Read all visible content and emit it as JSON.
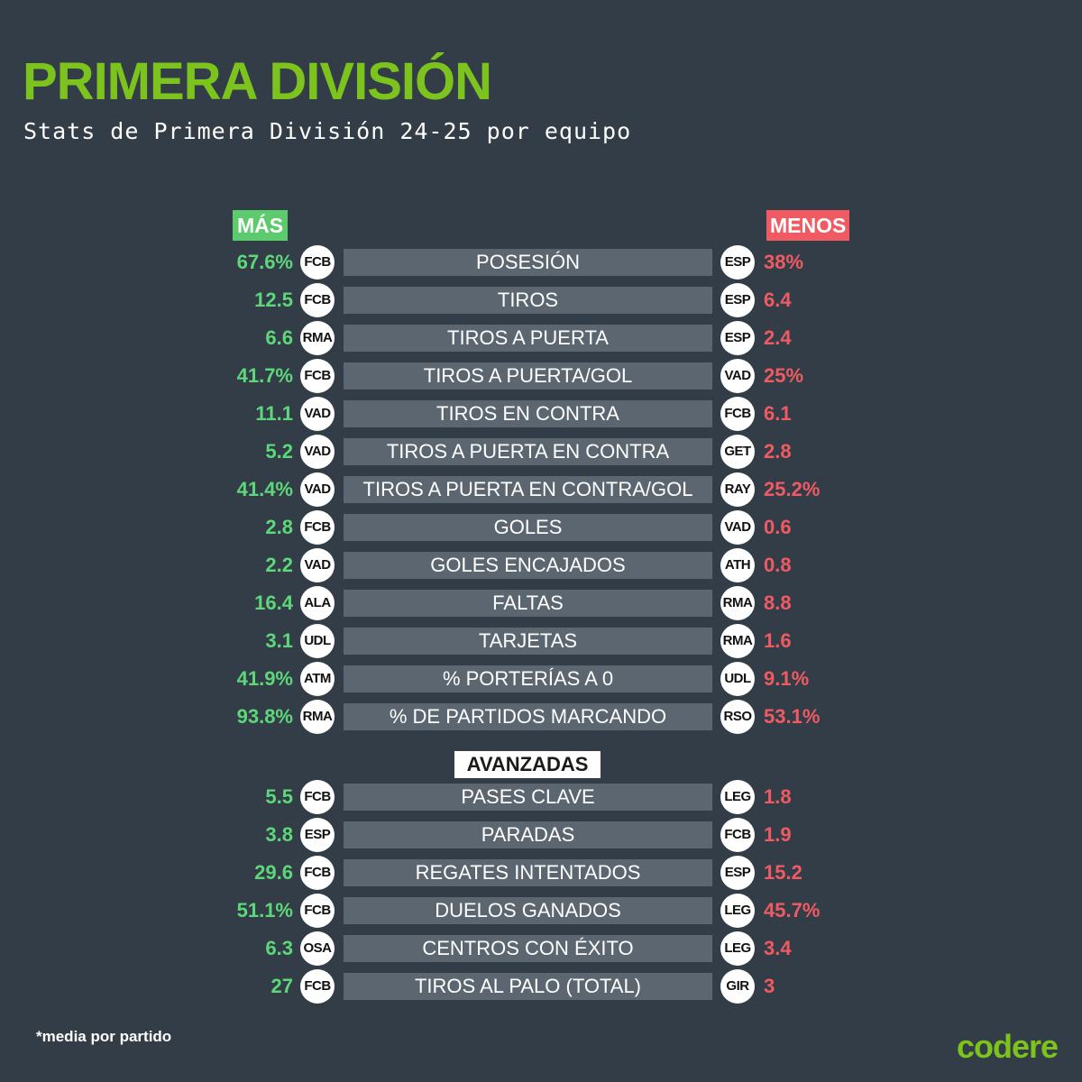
{
  "title": "PRIMERA DIVISIÓN",
  "subtitle": "Stats de Primera División 24-25 por equipo",
  "header_more": "MÁS",
  "header_less": "MENOS",
  "advanced_label": "AVANZADAS",
  "footnote": "*media por partido",
  "brand": "codere",
  "colors": {
    "background": "#333d47",
    "title": "#7dc31d",
    "more": "#5dd77a",
    "less": "#f05a63",
    "bar": "#5b6670"
  },
  "stats": [
    {
      "label": "POSESIÓN",
      "more_value": "67.6%",
      "more_team": "FCB",
      "less_team": "ESP",
      "less_value": "38%"
    },
    {
      "label": "TIROS",
      "more_value": "12.5",
      "more_team": "FCB",
      "less_team": "ESP",
      "less_value": "6.4"
    },
    {
      "label": "TIROS A PUERTA",
      "more_value": "6.6",
      "more_team": "RMA",
      "less_team": "ESP",
      "less_value": "2.4"
    },
    {
      "label": "TIROS A PUERTA/GOL",
      "more_value": "41.7%",
      "more_team": "FCB",
      "less_team": "VAD",
      "less_value": "25%"
    },
    {
      "label": "TIROS EN CONTRA",
      "more_value": "11.1",
      "more_team": "VAD",
      "less_team": "FCB",
      "less_value": "6.1"
    },
    {
      "label": "TIROS A PUERTA EN CONTRA",
      "more_value": "5.2",
      "more_team": "VAD",
      "less_team": "GET",
      "less_value": "2.8"
    },
    {
      "label": "TIROS A PUERTA EN CONTRA/GOL",
      "more_value": "41.4%",
      "more_team": "VAD",
      "less_team": "RAY",
      "less_value": "25.2%"
    },
    {
      "label": "GOLES",
      "more_value": "2.8",
      "more_team": "FCB",
      "less_team": "VAD",
      "less_value": "0.6"
    },
    {
      "label": "GOLES ENCAJADOS",
      "more_value": "2.2",
      "more_team": "VAD",
      "less_team": "ATH",
      "less_value": "0.8"
    },
    {
      "label": "FALTAS",
      "more_value": "16.4",
      "more_team": "ALA",
      "less_team": "RMA",
      "less_value": "8.8"
    },
    {
      "label": "TARJETAS",
      "more_value": "3.1",
      "more_team": "UDL",
      "less_team": "RMA",
      "less_value": "1.6"
    },
    {
      "label": "% PORTERÍAS A 0",
      "more_value": "41.9%",
      "more_team": "ATM",
      "less_team": "UDL",
      "less_value": "9.1%"
    },
    {
      "label": "% DE PARTIDOS MARCANDO",
      "more_value": "93.8%",
      "more_team": "RMA",
      "less_team": "RSO",
      "less_value": "53.1%"
    }
  ],
  "advanced": [
    {
      "label": "PASES CLAVE",
      "more_value": "5.5",
      "more_team": "FCB",
      "less_team": "LEG",
      "less_value": "1.8"
    },
    {
      "label": "PARADAS",
      "more_value": "3.8",
      "more_team": "ESP",
      "less_team": "FCB",
      "less_value": "1.9"
    },
    {
      "label": "REGATES INTENTADOS",
      "more_value": "29.6",
      "more_team": "FCB",
      "less_team": "ESP",
      "less_value": "15.2"
    },
    {
      "label": "DUELOS GANADOS",
      "more_value": "51.1%",
      "more_team": "FCB",
      "less_team": "LEG",
      "less_value": "45.7%"
    },
    {
      "label": "CENTROS CON ÉXITO",
      "more_value": "6.3",
      "more_team": "OSA",
      "less_team": "LEG",
      "less_value": "3.4"
    },
    {
      "label": "TIROS AL PALO (TOTAL)",
      "more_value": "27",
      "more_team": "FCB",
      "less_team": "GIR",
      "less_value": "3"
    }
  ]
}
